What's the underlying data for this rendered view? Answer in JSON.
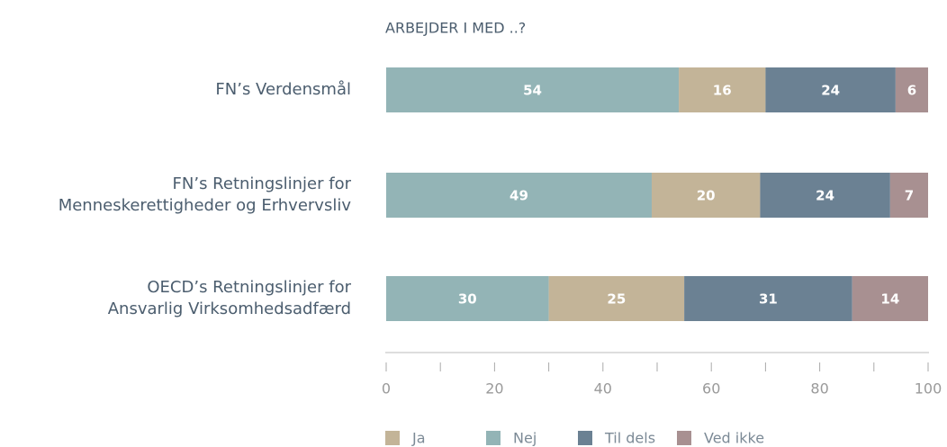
{
  "chart_data": {
    "type": "stacked_bar_horizontal",
    "title": "ARBEJDER I MED ..?",
    "categories": [
      "FN’s Verdensmål",
      "FN’s Retningslinjer for\nMenneskerettigheder og Erhvervsliv",
      "OECD’s Retningslinjer for\nAnsvarlig Virksomhedsadfærd"
    ],
    "series": [
      {
        "name": "Ja",
        "color": "#c3b498",
        "values": [
          16,
          20,
          25
        ]
      },
      {
        "name": "Nej",
        "color": "#93b4b6",
        "values": [
          54,
          49,
          30
        ]
      },
      {
        "name": "Til dels",
        "color": "#6b8193",
        "values": [
          24,
          24,
          31
        ]
      },
      {
        "name": "Ved ikke",
        "color": "#a89091",
        "values": [
          6,
          7,
          14
        ]
      }
    ],
    "xlim": [
      0,
      100
    ],
    "xticks": [
      0,
      20,
      40,
      60,
      80,
      100
    ]
  }
}
